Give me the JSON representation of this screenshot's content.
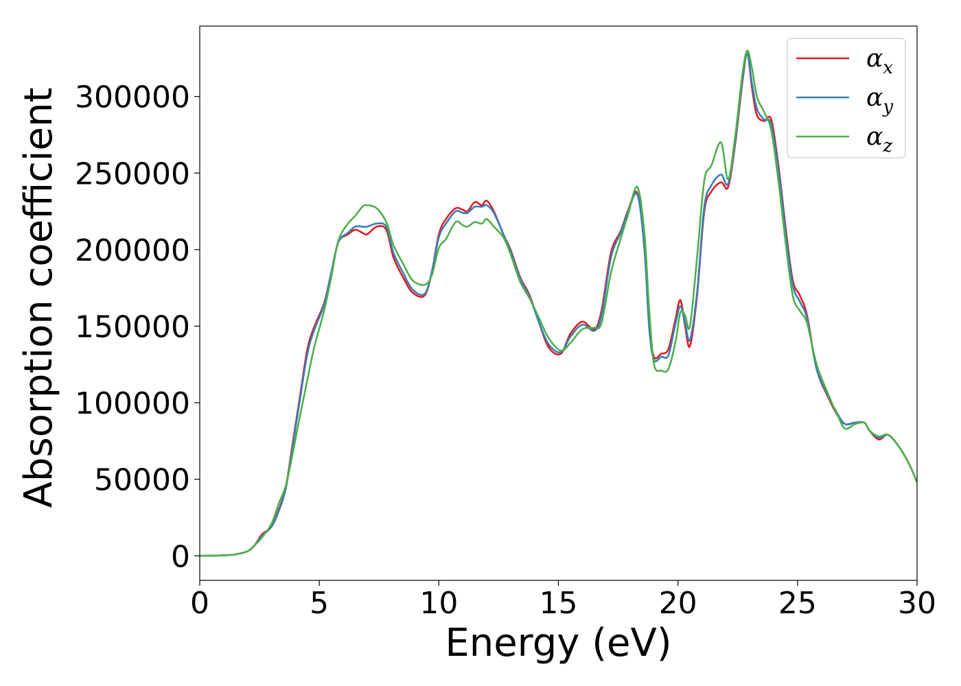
{
  "chart_data": {
    "type": "line",
    "title": "",
    "xlabel": "Energy (eV)",
    "ylabel": "Absorption coefficient",
    "xlim": [
      0,
      30
    ],
    "ylim": [
      -16000,
      346000
    ],
    "xticks": [
      0,
      5,
      10,
      15,
      20,
      25,
      30
    ],
    "yticks": [
      0,
      50000,
      100000,
      150000,
      200000,
      250000,
      300000
    ],
    "grid": false,
    "legend": "top-right",
    "series": [
      {
        "name": "α",
        "subscript": "x",
        "color": "#e41a1c",
        "points": [
          [
            0,
            0
          ],
          [
            1,
            300
          ],
          [
            1.5,
            1000
          ],
          [
            2,
            3000
          ],
          [
            2.3,
            7000
          ],
          [
            2.6,
            14000
          ],
          [
            3,
            19000
          ],
          [
            3.3,
            30000
          ],
          [
            3.6,
            45000
          ],
          [
            3.9,
            75000
          ],
          [
            4.2,
            105000
          ],
          [
            4.5,
            135000
          ],
          [
            4.8,
            150000
          ],
          [
            5.2,
            165000
          ],
          [
            5.5,
            185000
          ],
          [
            5.8,
            205000
          ],
          [
            6.2,
            210000
          ],
          [
            6.5,
            213000
          ],
          [
            6.8,
            211000
          ],
          [
            7,
            210000
          ],
          [
            7.4,
            215000
          ],
          [
            7.8,
            213000
          ],
          [
            8.1,
            195000
          ],
          [
            8.5,
            182000
          ],
          [
            8.9,
            172000
          ],
          [
            9.4,
            170000
          ],
          [
            9.7,
            185000
          ],
          [
            10,
            210000
          ],
          [
            10.3,
            220000
          ],
          [
            10.7,
            227000
          ],
          [
            11,
            226000
          ],
          [
            11.2,
            225000
          ],
          [
            11.5,
            231000
          ],
          [
            11.8,
            229000
          ],
          [
            12,
            232000
          ],
          [
            12.3,
            225000
          ],
          [
            12.7,
            210000
          ],
          [
            13,
            200000
          ],
          [
            13.4,
            182000
          ],
          [
            13.8,
            170000
          ],
          [
            14.2,
            152000
          ],
          [
            14.6,
            136000
          ],
          [
            15.1,
            132000
          ],
          [
            15.5,
            145000
          ],
          [
            16,
            153000
          ],
          [
            16.5,
            148000
          ],
          [
            16.8,
            160000
          ],
          [
            17.2,
            198000
          ],
          [
            17.6,
            212000
          ],
          [
            17.9,
            225000
          ],
          [
            18.3,
            237000
          ],
          [
            18.6,
            200000
          ],
          [
            18.8,
            150000
          ],
          [
            19,
            130000
          ],
          [
            19.3,
            132000
          ],
          [
            19.6,
            135000
          ],
          [
            19.9,
            155000
          ],
          [
            20.1,
            167000
          ],
          [
            20.3,
            150000
          ],
          [
            20.5,
            137000
          ],
          [
            20.8,
            170000
          ],
          [
            21.1,
            225000
          ],
          [
            21.4,
            238000
          ],
          [
            21.8,
            244000
          ],
          [
            22.1,
            241000
          ],
          [
            22.4,
            270000
          ],
          [
            22.7,
            310000
          ],
          [
            22.9,
            328000
          ],
          [
            23.1,
            305000
          ],
          [
            23.3,
            288000
          ],
          [
            23.6,
            284000
          ],
          [
            23.9,
            285000
          ],
          [
            24.2,
            255000
          ],
          [
            24.5,
            215000
          ],
          [
            24.8,
            180000
          ],
          [
            25.1,
            170000
          ],
          [
            25.4,
            157000
          ],
          [
            25.8,
            122000
          ],
          [
            26.3,
            103000
          ],
          [
            26.7,
            91000
          ],
          [
            27,
            86000
          ],
          [
            27.4,
            87000
          ],
          [
            27.8,
            87000
          ],
          [
            28,
            82000
          ],
          [
            28.4,
            76000
          ],
          [
            28.8,
            79000
          ],
          [
            29.3,
            70000
          ],
          [
            29.7,
            59000
          ],
          [
            30,
            48000
          ]
        ]
      },
      {
        "name": "α",
        "subscript": "y",
        "color": "#377eb8",
        "points": [
          [
            0,
            0
          ],
          [
            1,
            300
          ],
          [
            1.5,
            1000
          ],
          [
            2,
            3000
          ],
          [
            2.3,
            7000
          ],
          [
            2.6,
            13000
          ],
          [
            3,
            19000
          ],
          [
            3.3,
            29000
          ],
          [
            3.6,
            44000
          ],
          [
            3.9,
            73000
          ],
          [
            4.2,
            103000
          ],
          [
            4.5,
            132000
          ],
          [
            4.8,
            148000
          ],
          [
            5.2,
            164000
          ],
          [
            5.5,
            185000
          ],
          [
            5.8,
            205000
          ],
          [
            6.2,
            211000
          ],
          [
            6.5,
            215000
          ],
          [
            6.8,
            215000
          ],
          [
            7,
            215000
          ],
          [
            7.4,
            217000
          ],
          [
            7.8,
            215000
          ],
          [
            8.1,
            198000
          ],
          [
            8.5,
            185000
          ],
          [
            8.9,
            174000
          ],
          [
            9.4,
            171000
          ],
          [
            9.7,
            185000
          ],
          [
            10,
            208000
          ],
          [
            10.3,
            217000
          ],
          [
            10.7,
            225000
          ],
          [
            11,
            224000
          ],
          [
            11.2,
            224000
          ],
          [
            11.5,
            228000
          ],
          [
            11.8,
            228000
          ],
          [
            12,
            229000
          ],
          [
            12.3,
            224000
          ],
          [
            12.7,
            210000
          ],
          [
            13,
            199000
          ],
          [
            13.4,
            181000
          ],
          [
            13.8,
            169000
          ],
          [
            14.2,
            152000
          ],
          [
            14.6,
            138000
          ],
          [
            15.1,
            133000
          ],
          [
            15.5,
            143000
          ],
          [
            16,
            151000
          ],
          [
            16.5,
            147000
          ],
          [
            16.8,
            157000
          ],
          [
            17.2,
            195000
          ],
          [
            17.6,
            211000
          ],
          [
            17.9,
            224000
          ],
          [
            18.3,
            236000
          ],
          [
            18.6,
            200000
          ],
          [
            18.8,
            148000
          ],
          [
            19,
            128000
          ],
          [
            19.3,
            130000
          ],
          [
            19.6,
            131000
          ],
          [
            19.9,
            152000
          ],
          [
            20.1,
            163000
          ],
          [
            20.3,
            152000
          ],
          [
            20.5,
            141000
          ],
          [
            20.8,
            172000
          ],
          [
            21.1,
            228000
          ],
          [
            21.4,
            242000
          ],
          [
            21.8,
            249000
          ],
          [
            22.1,
            243000
          ],
          [
            22.4,
            272000
          ],
          [
            22.7,
            312000
          ],
          [
            22.9,
            328000
          ],
          [
            23.1,
            308000
          ],
          [
            23.3,
            292000
          ],
          [
            23.6,
            285000
          ],
          [
            23.9,
            282000
          ],
          [
            24.2,
            252000
          ],
          [
            24.5,
            212000
          ],
          [
            24.8,
            177000
          ],
          [
            25.1,
            166000
          ],
          [
            25.4,
            155000
          ],
          [
            25.8,
            122000
          ],
          [
            26.3,
            104000
          ],
          [
            26.7,
            92000
          ],
          [
            27,
            86000
          ],
          [
            27.4,
            87000
          ],
          [
            27.8,
            87000
          ],
          [
            28,
            82000
          ],
          [
            28.4,
            77000
          ],
          [
            28.8,
            79000
          ],
          [
            29.3,
            70000
          ],
          [
            29.7,
            59000
          ],
          [
            30,
            48000
          ]
        ]
      },
      {
        "name": "α",
        "subscript": "z",
        "color": "#4daf4a",
        "points": [
          [
            0,
            0
          ],
          [
            1,
            300
          ],
          [
            1.5,
            1000
          ],
          [
            2,
            3000
          ],
          [
            2.3,
            7000
          ],
          [
            2.6,
            12000
          ],
          [
            3,
            21000
          ],
          [
            3.3,
            34000
          ],
          [
            3.6,
            46000
          ],
          [
            3.9,
            68000
          ],
          [
            4.2,
            92000
          ],
          [
            4.5,
            115000
          ],
          [
            4.8,
            137000
          ],
          [
            5.2,
            160000
          ],
          [
            5.5,
            182000
          ],
          [
            5.8,
            206000
          ],
          [
            6.2,
            217000
          ],
          [
            6.5,
            222000
          ],
          [
            6.8,
            228000
          ],
          [
            7,
            229000
          ],
          [
            7.4,
            227000
          ],
          [
            7.8,
            218000
          ],
          [
            8.1,
            203000
          ],
          [
            8.5,
            191000
          ],
          [
            8.9,
            180000
          ],
          [
            9.4,
            177000
          ],
          [
            9.7,
            183000
          ],
          [
            10,
            201000
          ],
          [
            10.3,
            207000
          ],
          [
            10.7,
            218000
          ],
          [
            11,
            216000
          ],
          [
            11.2,
            215000
          ],
          [
            11.5,
            218000
          ],
          [
            11.8,
            217000
          ],
          [
            12,
            220000
          ],
          [
            12.3,
            215000
          ],
          [
            12.7,
            208000
          ],
          [
            13,
            197000
          ],
          [
            13.4,
            179000
          ],
          [
            13.8,
            168000
          ],
          [
            14.2,
            155000
          ],
          [
            14.6,
            142000
          ],
          [
            15.1,
            134000
          ],
          [
            15.5,
            139000
          ],
          [
            16,
            148000
          ],
          [
            16.5,
            149000
          ],
          [
            16.8,
            152000
          ],
          [
            17.2,
            185000
          ],
          [
            17.6,
            207000
          ],
          [
            17.9,
            222000
          ],
          [
            18.3,
            241000
          ],
          [
            18.6,
            210000
          ],
          [
            18.8,
            160000
          ],
          [
            19,
            125000
          ],
          [
            19.3,
            121000
          ],
          [
            19.6,
            122000
          ],
          [
            19.9,
            140000
          ],
          [
            20.1,
            159000
          ],
          [
            20.3,
            157000
          ],
          [
            20.5,
            150000
          ],
          [
            20.8,
            195000
          ],
          [
            21.1,
            245000
          ],
          [
            21.4,
            255000
          ],
          [
            21.8,
            270000
          ],
          [
            22.1,
            246000
          ],
          [
            22.4,
            275000
          ],
          [
            22.7,
            315000
          ],
          [
            22.9,
            330000
          ],
          [
            23.1,
            318000
          ],
          [
            23.3,
            300000
          ],
          [
            23.6,
            290000
          ],
          [
            23.9,
            278000
          ],
          [
            24.2,
            245000
          ],
          [
            24.5,
            205000
          ],
          [
            24.8,
            170000
          ],
          [
            25.1,
            160000
          ],
          [
            25.4,
            152000
          ],
          [
            25.8,
            125000
          ],
          [
            26.3,
            105000
          ],
          [
            26.7,
            91000
          ],
          [
            27,
            83000
          ],
          [
            27.4,
            86000
          ],
          [
            27.8,
            87000
          ],
          [
            28,
            82000
          ],
          [
            28.4,
            78000
          ],
          [
            28.8,
            79000
          ],
          [
            29.3,
            70000
          ],
          [
            29.7,
            59000
          ],
          [
            30,
            48000
          ]
        ]
      }
    ]
  }
}
